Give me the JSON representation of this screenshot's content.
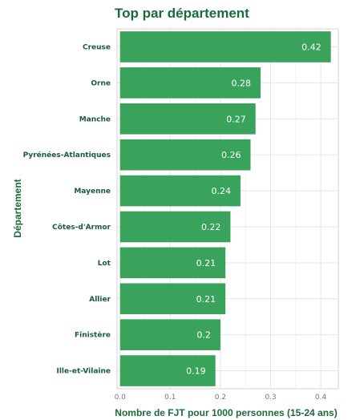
{
  "chart_data": {
    "type": "bar",
    "orientation": "horizontal",
    "title": "Top par département",
    "xlabel": "Nombre de FJT pour 1000 personnes (15-24 ans)",
    "ylabel": "Département",
    "categories": [
      "Creuse",
      "Orne",
      "Manche",
      "Pyrénées-Atlantiques",
      "Mayenne",
      "Côtes-d'Armor",
      "Lot",
      "Allier",
      "Finistère",
      "Ille-et-Vilaine"
    ],
    "values": [
      0.42,
      0.28,
      0.27,
      0.26,
      0.24,
      0.22,
      0.21,
      0.21,
      0.2,
      0.19
    ],
    "value_labels": [
      "0.42",
      "0.28",
      "0.27",
      "0.26",
      "0.24",
      "0.22",
      "0.21",
      "0.21",
      "0.2",
      "0.19"
    ],
    "xticks": [
      "0.0",
      "0.1",
      "0.2",
      "0.3",
      "0.4"
    ],
    "xtick_values": [
      0,
      0.1,
      0.2,
      0.3,
      0.4
    ],
    "xlim": [
      -0.006,
      0.435
    ],
    "grid": true,
    "colors": {
      "bar": "#3aa35b",
      "title": "#1a6a3c",
      "label": "#1a5c34",
      "value_text": "#ffffff"
    }
  }
}
